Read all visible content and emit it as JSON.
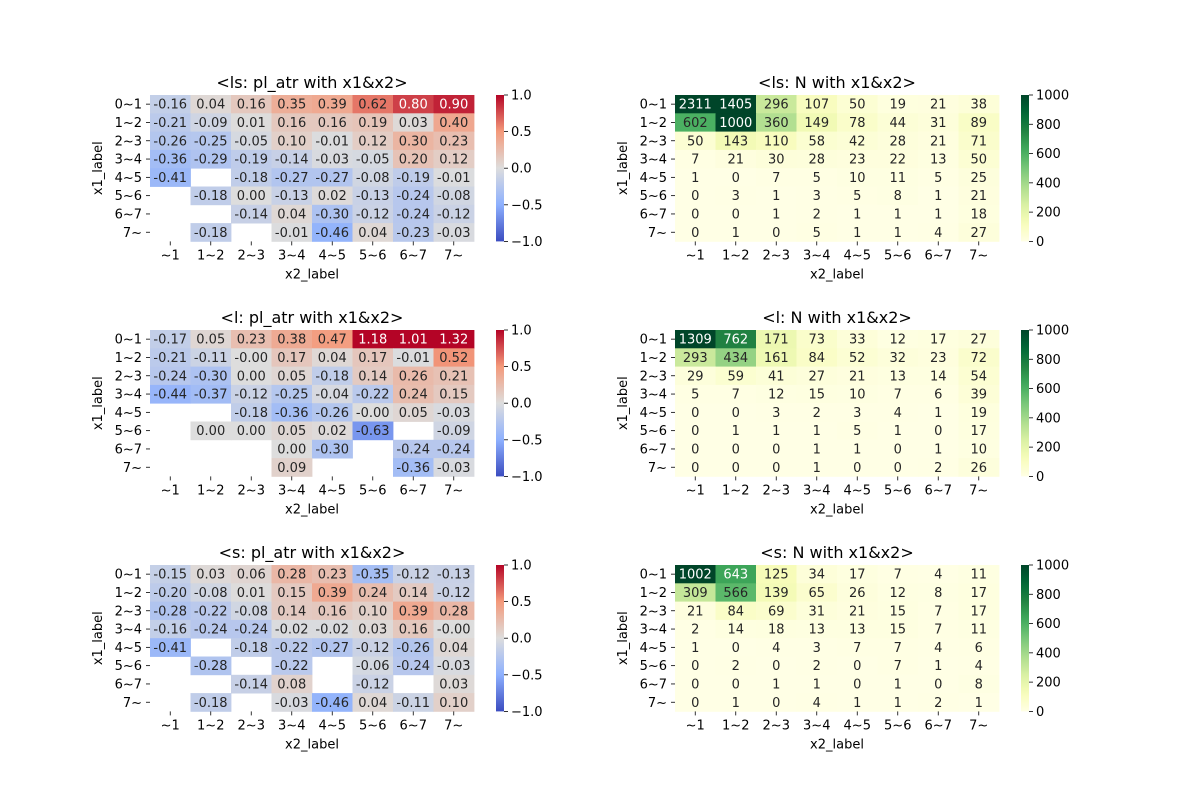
{
  "figure": {
    "background": "#ffffff"
  },
  "chart_data": [
    {
      "type": "heatmap",
      "title": "<ls: pl_atr with x1&x2>",
      "xlabel": "x2_label",
      "ylabel": "x1_label",
      "x_categories": [
        "~1",
        "1~2",
        "2~3",
        "3~4",
        "4~5",
        "5~6",
        "6~7",
        "7~"
      ],
      "y_categories": [
        "0~1",
        "1~2",
        "2~3",
        "3~4",
        "4~5",
        "5~6",
        "6~7",
        "7~"
      ],
      "values": [
        [
          -0.16,
          0.04,
          0.16,
          0.35,
          0.39,
          0.62,
          0.8,
          0.9
        ],
        [
          -0.21,
          -0.09,
          0.01,
          0.16,
          0.16,
          0.19,
          0.03,
          0.4
        ],
        [
          -0.26,
          -0.25,
          -0.05,
          0.1,
          -0.01,
          0.12,
          0.3,
          0.23
        ],
        [
          -0.36,
          -0.29,
          -0.19,
          -0.14,
          -0.03,
          -0.05,
          0.2,
          0.12
        ],
        [
          -0.41,
          null,
          -0.18,
          -0.27,
          -0.27,
          -0.08,
          -0.19,
          -0.01
        ],
        [
          null,
          -0.18,
          0.0,
          -0.13,
          0.02,
          -0.13,
          -0.24,
          -0.08
        ],
        [
          null,
          null,
          -0.14,
          0.04,
          -0.3,
          -0.12,
          -0.24,
          -0.12
        ],
        [
          null,
          -0.18,
          null,
          -0.01,
          -0.46,
          0.04,
          -0.23,
          -0.03
        ]
      ],
      "colormap": "coolwarm",
      "vmin": -1.0,
      "vmax": 1.0,
      "colorbar_ticks": [
        1.0,
        0.5,
        0.0,
        -0.5,
        -1.0
      ],
      "colorbar_tick_labels": [
        "1.0",
        "0.5",
        "0.0",
        "−0.5",
        "−1.0"
      ],
      "value_format": "2f"
    },
    {
      "type": "heatmap",
      "title": "<ls: N with x1&x2>",
      "xlabel": "x2_label",
      "ylabel": "x1_label",
      "x_categories": [
        "~1",
        "1~2",
        "2~3",
        "3~4",
        "4~5",
        "5~6",
        "6~7",
        "7~"
      ],
      "y_categories": [
        "0~1",
        "1~2",
        "2~3",
        "3~4",
        "4~5",
        "5~6",
        "6~7",
        "7~"
      ],
      "values": [
        [
          2311,
          1405,
          296,
          107,
          50,
          19,
          21,
          38
        ],
        [
          602,
          1000,
          360,
          149,
          78,
          44,
          31,
          89
        ],
        [
          50,
          143,
          110,
          58,
          42,
          28,
          21,
          71
        ],
        [
          7,
          21,
          30,
          28,
          23,
          22,
          13,
          50
        ],
        [
          1,
          0,
          7,
          5,
          10,
          11,
          5,
          25
        ],
        [
          0,
          3,
          1,
          3,
          5,
          8,
          1,
          21
        ],
        [
          0,
          0,
          1,
          2,
          1,
          1,
          1,
          18
        ],
        [
          0,
          1,
          0,
          5,
          1,
          1,
          4,
          27
        ]
      ],
      "colormap": "YlGn",
      "vmin": 0,
      "vmax": 1000,
      "colorbar_ticks": [
        1000,
        800,
        600,
        400,
        200,
        0
      ],
      "colorbar_tick_labels": [
        "1000",
        "800",
        "600",
        "400",
        "200",
        "0"
      ],
      "value_format": "int"
    },
    {
      "type": "heatmap",
      "title": "<l: pl_atr with x1&x2>",
      "xlabel": "x2_label",
      "ylabel": "x1_label",
      "x_categories": [
        "~1",
        "1~2",
        "2~3",
        "3~4",
        "4~5",
        "5~6",
        "6~7",
        "7~"
      ],
      "y_categories": [
        "0~1",
        "1~2",
        "2~3",
        "3~4",
        "4~5",
        "5~6",
        "6~7",
        "7~"
      ],
      "values": [
        [
          -0.17,
          0.05,
          0.23,
          0.38,
          0.47,
          1.18,
          1.01,
          1.32
        ],
        [
          -0.21,
          -0.11,
          -0.0,
          0.17,
          0.04,
          0.17,
          -0.01,
          0.52
        ],
        [
          -0.24,
          -0.3,
          0.0,
          0.05,
          -0.18,
          0.14,
          0.26,
          0.21
        ],
        [
          -0.44,
          -0.37,
          -0.12,
          -0.25,
          -0.04,
          -0.22,
          0.24,
          0.15
        ],
        [
          null,
          null,
          -0.18,
          -0.36,
          -0.26,
          -0.0,
          0.05,
          -0.03
        ],
        [
          null,
          0.0,
          0.0,
          0.05,
          0.02,
          -0.63,
          null,
          -0.09
        ],
        [
          null,
          null,
          null,
          0.0,
          -0.3,
          null,
          -0.24,
          -0.24
        ],
        [
          null,
          null,
          null,
          0.09,
          null,
          null,
          -0.36,
          -0.03
        ]
      ],
      "colormap": "coolwarm",
      "vmin": -1.0,
      "vmax": 1.0,
      "colorbar_ticks": [
        1.0,
        0.5,
        0.0,
        -0.5,
        -1.0
      ],
      "colorbar_tick_labels": [
        "1.0",
        "0.5",
        "0.0",
        "−0.5",
        "−1.0"
      ],
      "value_format": "2f"
    },
    {
      "type": "heatmap",
      "title": "<l: N with x1&x2>",
      "xlabel": "x2_label",
      "ylabel": "x1_label",
      "x_categories": [
        "~1",
        "1~2",
        "2~3",
        "3~4",
        "4~5",
        "5~6",
        "6~7",
        "7~"
      ],
      "y_categories": [
        "0~1",
        "1~2",
        "2~3",
        "3~4",
        "4~5",
        "5~6",
        "6~7",
        "7~"
      ],
      "values": [
        [
          1309,
          762,
          171,
          73,
          33,
          12,
          17,
          27
        ],
        [
          293,
          434,
          161,
          84,
          52,
          32,
          23,
          72
        ],
        [
          29,
          59,
          41,
          27,
          21,
          13,
          14,
          54
        ],
        [
          5,
          7,
          12,
          15,
          10,
          7,
          6,
          39
        ],
        [
          0,
          0,
          3,
          2,
          3,
          4,
          1,
          19
        ],
        [
          0,
          1,
          1,
          1,
          5,
          1,
          0,
          17
        ],
        [
          0,
          0,
          0,
          1,
          1,
          0,
          1,
          10
        ],
        [
          0,
          0,
          0,
          1,
          0,
          0,
          2,
          26
        ]
      ],
      "colormap": "YlGn",
      "vmin": 0,
      "vmax": 1000,
      "colorbar_ticks": [
        1000,
        800,
        600,
        400,
        200,
        0
      ],
      "colorbar_tick_labels": [
        "1000",
        "800",
        "600",
        "400",
        "200",
        "0"
      ],
      "value_format": "int"
    },
    {
      "type": "heatmap",
      "title": "<s: pl_atr with x1&x2>",
      "xlabel": "x2_label",
      "ylabel": "x1_label",
      "x_categories": [
        "~1",
        "1~2",
        "2~3",
        "3~4",
        "4~5",
        "5~6",
        "6~7",
        "7~"
      ],
      "y_categories": [
        "0~1",
        "1~2",
        "2~3",
        "3~4",
        "4~5",
        "5~6",
        "6~7",
        "7~"
      ],
      "values": [
        [
          -0.15,
          0.03,
          0.06,
          0.28,
          0.23,
          -0.35,
          -0.12,
          -0.13
        ],
        [
          -0.2,
          -0.08,
          0.01,
          0.15,
          0.39,
          0.24,
          0.14,
          -0.12
        ],
        [
          -0.28,
          -0.22,
          -0.08,
          0.14,
          0.16,
          0.1,
          0.39,
          0.28
        ],
        [
          -0.16,
          -0.24,
          -0.24,
          -0.02,
          -0.02,
          0.03,
          0.16,
          -0.0
        ],
        [
          -0.41,
          null,
          -0.18,
          -0.22,
          -0.27,
          -0.12,
          -0.26,
          0.04
        ],
        [
          null,
          -0.28,
          null,
          -0.22,
          null,
          -0.06,
          -0.24,
          -0.03
        ],
        [
          null,
          null,
          -0.14,
          0.08,
          null,
          -0.12,
          null,
          0.03
        ],
        [
          null,
          -0.18,
          null,
          -0.03,
          -0.46,
          0.04,
          -0.11,
          0.1
        ]
      ],
      "colormap": "coolwarm",
      "vmin": -1.0,
      "vmax": 1.0,
      "colorbar_ticks": [
        1.0,
        0.5,
        0.0,
        -0.5,
        -1.0
      ],
      "colorbar_tick_labels": [
        "1.0",
        "0.5",
        "0.0",
        "−0.5",
        "−1.0"
      ],
      "value_format": "2f"
    },
    {
      "type": "heatmap",
      "title": "<s: N with x1&x2>",
      "xlabel": "x2_label",
      "ylabel": "x1_label",
      "x_categories": [
        "~1",
        "1~2",
        "2~3",
        "3~4",
        "4~5",
        "5~6",
        "6~7",
        "7~"
      ],
      "y_categories": [
        "0~1",
        "1~2",
        "2~3",
        "3~4",
        "4~5",
        "5~6",
        "6~7",
        "7~"
      ],
      "values": [
        [
          1002,
          643,
          125,
          34,
          17,
          7,
          4,
          11
        ],
        [
          309,
          566,
          139,
          65,
          26,
          12,
          8,
          17
        ],
        [
          21,
          84,
          69,
          31,
          21,
          15,
          7,
          17
        ],
        [
          2,
          14,
          18,
          13,
          13,
          15,
          7,
          11
        ],
        [
          1,
          0,
          4,
          3,
          7,
          7,
          4,
          6
        ],
        [
          0,
          2,
          0,
          2,
          0,
          7,
          1,
          4
        ],
        [
          0,
          0,
          1,
          1,
          0,
          1,
          0,
          8
        ],
        [
          0,
          1,
          0,
          4,
          1,
          1,
          2,
          1
        ]
      ],
      "colormap": "YlGn",
      "vmin": 0,
      "vmax": 1000,
      "colorbar_ticks": [
        1000,
        800,
        600,
        400,
        200,
        0
      ],
      "colorbar_tick_labels": [
        "1000",
        "800",
        "600",
        "400",
        "200",
        "0"
      ],
      "value_format": "int"
    }
  ]
}
